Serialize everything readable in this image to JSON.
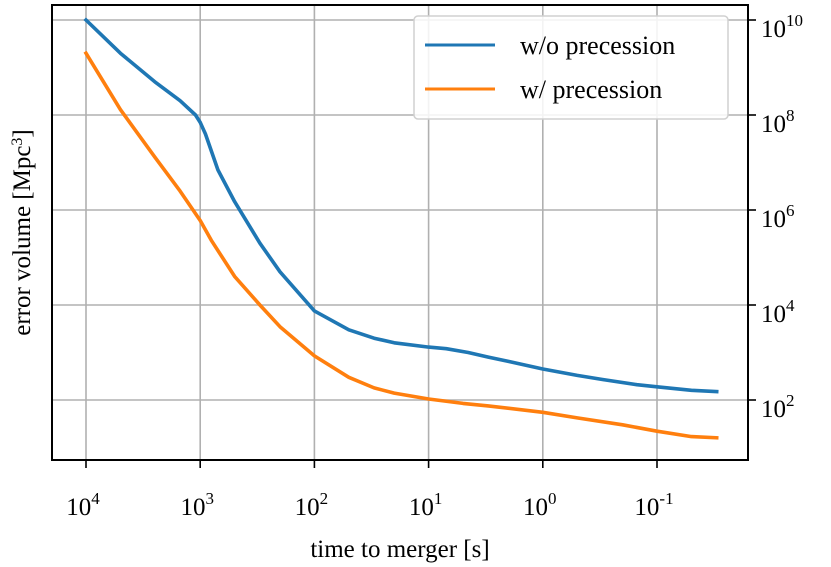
{
  "chart_data": {
    "type": "line",
    "xlabel": "time to merger [s]",
    "ylabel_main": "error volume [Mpc",
    "ylabel_sup": "3",
    "ylabel_end": "]",
    "x_scale": "log, reversed",
    "y_scale": "log",
    "x_ticks": [
      {
        "value": 10000,
        "base": "10",
        "exp": "4"
      },
      {
        "value": 1000,
        "base": "10",
        "exp": "3"
      },
      {
        "value": 100,
        "base": "10",
        "exp": "2"
      },
      {
        "value": 10,
        "base": "10",
        "exp": "1"
      },
      {
        "value": 1,
        "base": "10",
        "exp": "0"
      },
      {
        "value": 0.1,
        "base": "10",
        "exp": "-1"
      }
    ],
    "y_ticks": [
      {
        "value": 100,
        "base": "10",
        "exp": "2"
      },
      {
        "value": 10000,
        "base": "10",
        "exp": "4"
      },
      {
        "value": 1000000,
        "base": "10",
        "exp": "6"
      },
      {
        "value": 100000000,
        "base": "10",
        "exp": "8"
      },
      {
        "value": 10000000000,
        "base": "10",
        "exp": "10"
      }
    ],
    "y_axis_side": "right",
    "grid": true,
    "legend_position": "top-right",
    "series": [
      {
        "name": "w/o precession",
        "color": "#1f77b4",
        "x": [
          10000,
          5000,
          2500,
          1500,
          1100,
          1000,
          900,
          700,
          500,
          300,
          200,
          100,
          50,
          30,
          20,
          10,
          7,
          4.5,
          3,
          2,
          1,
          0.5,
          0.3,
          0.15,
          0.1,
          0.05,
          0.03
        ],
        "y": [
          10000000000,
          2000000000,
          500000000,
          200000000,
          100000000,
          70000000,
          40000000,
          7000000,
          1500000,
          200000,
          50000,
          7500,
          3000,
          2000,
          1600,
          1300,
          1200,
          1000,
          800,
          650,
          450,
          330,
          270,
          210,
          190,
          160,
          150
        ]
      },
      {
        "name": "w/ precession",
        "color": "#ff7f0e",
        "x": [
          10000,
          5000,
          2500,
          1500,
          1000,
          800,
          500,
          300,
          200,
          100,
          50,
          30,
          20,
          10,
          5,
          3,
          1,
          0.5,
          0.2,
          0.1,
          0.05,
          0.03
        ],
        "y": [
          2000000000,
          130000000,
          13000000,
          2500000,
          600000,
          230000,
          40000,
          10000,
          3500,
          850,
          300,
          180,
          140,
          105,
          85,
          75,
          55,
          42,
          30,
          22,
          17,
          16
        ]
      }
    ]
  }
}
